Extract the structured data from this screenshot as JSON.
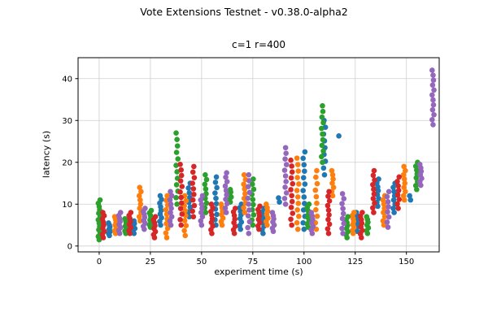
{
  "chart_data": {
    "type": "scatter",
    "suptitle": "Vote Extensions Testnet - v0.38.0-alpha2",
    "title": "c=1 r=400",
    "xlabel": "experiment time (s)",
    "ylabel": "latency (s)",
    "xlim": [
      -10.3,
      166
    ],
    "ylim": [
      -1.4,
      45
    ],
    "x_ticks": [
      0,
      25,
      50,
      75,
      100,
      125,
      150
    ],
    "y_ticks": [
      0,
      10,
      20,
      30,
      40
    ],
    "grid": true,
    "legend": "none",
    "point_radius": 3.3,
    "series": [
      {
        "name": "series-blue",
        "color": "#1f77b4",
        "clusters": [
          {
            "x": 5,
            "y_min": 2.5,
            "y_max": 5.5,
            "n": 7
          },
          {
            "x": 17,
            "y_min": 3,
            "y_max": 6,
            "n": 6
          },
          {
            "x": 30,
            "y_min": 5,
            "y_max": 12,
            "n": 9
          },
          {
            "x": 44,
            "y_min": 7,
            "y_max": 15,
            "n": 8
          },
          {
            "x": 57,
            "y_min": 5,
            "y_max": 16.5,
            "n": 10
          },
          {
            "x": 69,
            "y_min": 4,
            "y_max": 10,
            "n": 8
          },
          {
            "x": 80,
            "y_min": 3,
            "y_max": 9,
            "n": 8
          },
          {
            "x": 88,
            "y_min": 10.5,
            "y_max": 11.5,
            "n": 2
          },
          {
            "x": 100,
            "y_min": 4,
            "y_max": 22.5,
            "n": 13
          },
          {
            "x": 110,
            "y_min": 17,
            "y_max": 30,
            "n": 9
          },
          {
            "x": 117,
            "y_min": 26.3,
            "y_max": 26.3,
            "n": 1
          },
          {
            "x": 126,
            "y_min": 3.5,
            "y_max": 8,
            "n": 7
          },
          {
            "x": 136,
            "y_min": 9.5,
            "y_max": 16,
            "n": 8
          },
          {
            "x": 144,
            "y_min": 8,
            "y_max": 15,
            "n": 8
          },
          {
            "x": 152,
            "y_min": 11,
            "y_max": 12,
            "n": 2
          }
        ]
      },
      {
        "name": "series-orange",
        "color": "#ff7f0e",
        "clusters": [
          {
            "x": 8,
            "y_min": 3,
            "y_max": 7,
            "n": 7
          },
          {
            "x": 20,
            "y_min": 6,
            "y_max": 14,
            "n": 9
          },
          {
            "x": 33,
            "y_min": 2,
            "y_max": 12,
            "n": 10
          },
          {
            "x": 42,
            "y_min": 2.5,
            "y_max": 12,
            "n": 9
          },
          {
            "x": 60,
            "y_min": 5,
            "y_max": 10,
            "n": 7
          },
          {
            "x": 71,
            "y_min": 8,
            "y_max": 17,
            "n": 9
          },
          {
            "x": 82,
            "y_min": 5,
            "y_max": 10,
            "n": 7
          },
          {
            "x": 97,
            "y_min": 4,
            "y_max": 21,
            "n": 12
          },
          {
            "x": 106,
            "y_min": 4,
            "y_max": 18,
            "n": 10
          },
          {
            "x": 114,
            "y_min": 12,
            "y_max": 18,
            "n": 7
          },
          {
            "x": 124,
            "y_min": 3,
            "y_max": 8,
            "n": 8
          },
          {
            "x": 139,
            "y_min": 5,
            "y_max": 12,
            "n": 8
          },
          {
            "x": 149,
            "y_min": 11,
            "y_max": 19,
            "n": 9
          }
        ]
      },
      {
        "name": "series-green",
        "color": "#2ca02c",
        "clusters": [
          {
            "x": 0,
            "y_min": 1.5,
            "y_max": 11,
            "n": 13
          },
          {
            "x": 13,
            "y_min": 3,
            "y_max": 6.5,
            "n": 7
          },
          {
            "x": 25,
            "y_min": 4.5,
            "y_max": 8.5,
            "n": 8
          },
          {
            "x": 38,
            "y_min": 10,
            "y_max": 27,
            "n": 12
          },
          {
            "x": 52,
            "y_min": 8,
            "y_max": 17,
            "n": 9
          },
          {
            "x": 64,
            "y_min": 10.5,
            "y_max": 13.5,
            "n": 6
          },
          {
            "x": 75,
            "y_min": 5,
            "y_max": 16,
            "n": 10
          },
          {
            "x": 102,
            "y_min": 4.5,
            "y_max": 10,
            "n": 8
          },
          {
            "x": 109,
            "y_min": 20,
            "y_max": 33.5,
            "n": 11
          },
          {
            "x": 121,
            "y_min": 2,
            "y_max": 7,
            "n": 8
          },
          {
            "x": 131,
            "y_min": 3,
            "y_max": 7,
            "n": 7
          },
          {
            "x": 155,
            "y_min": 13.5,
            "y_max": 20,
            "n": 8
          }
        ]
      },
      {
        "name": "series-red",
        "color": "#d62728",
        "clusters": [
          {
            "x": 2,
            "y_min": 2,
            "y_max": 8,
            "n": 9
          },
          {
            "x": 15,
            "y_min": 3,
            "y_max": 8,
            "n": 8
          },
          {
            "x": 27,
            "y_min": 2,
            "y_max": 7,
            "n": 8
          },
          {
            "x": 40,
            "y_min": 5,
            "y_max": 19.5,
            "n": 12
          },
          {
            "x": 46,
            "y_min": 7,
            "y_max": 19,
            "n": 10
          },
          {
            "x": 55,
            "y_min": 3,
            "y_max": 10,
            "n": 9
          },
          {
            "x": 66,
            "y_min": 3,
            "y_max": 9,
            "n": 8
          },
          {
            "x": 78,
            "y_min": 4,
            "y_max": 9.5,
            "n": 8
          },
          {
            "x": 94,
            "y_min": 5,
            "y_max": 20.5,
            "n": 12
          },
          {
            "x": 112,
            "y_min": 3,
            "y_max": 13,
            "n": 10
          },
          {
            "x": 128,
            "y_min": 2,
            "y_max": 8,
            "n": 8
          },
          {
            "x": 134,
            "y_min": 8,
            "y_max": 18,
            "n": 10
          },
          {
            "x": 146,
            "y_min": 9,
            "y_max": 16.5,
            "n": 8
          }
        ]
      },
      {
        "name": "series-purple",
        "color": "#9467bd",
        "clusters": [
          {
            "x": 10,
            "y_min": 3,
            "y_max": 8,
            "n": 8
          },
          {
            "x": 22,
            "y_min": 4,
            "y_max": 9,
            "n": 8
          },
          {
            "x": 35,
            "y_min": 5,
            "y_max": 13,
            "n": 9
          },
          {
            "x": 50,
            "y_min": 5,
            "y_max": 12,
            "n": 8
          },
          {
            "x": 62,
            "y_min": 8,
            "y_max": 17.5,
            "n": 10
          },
          {
            "x": 73,
            "y_min": 3,
            "y_max": 17,
            "n": 11
          },
          {
            "x": 85,
            "y_min": 3.5,
            "y_max": 8,
            "n": 7
          },
          {
            "x": 91,
            "y_min": 10,
            "y_max": 23.5,
            "n": 11
          },
          {
            "x": 104,
            "y_min": 3,
            "y_max": 8,
            "n": 7
          },
          {
            "x": 119,
            "y_min": 3,
            "y_max": 12.5,
            "n": 9
          },
          {
            "x": 141,
            "y_min": 4.5,
            "y_max": 13,
            "n": 8
          },
          {
            "x": 157,
            "y_min": 14.5,
            "y_max": 19.5,
            "n": 7
          },
          {
            "x": 163,
            "y_min": 29,
            "y_max": 42,
            "n": 12
          }
        ]
      }
    ]
  }
}
